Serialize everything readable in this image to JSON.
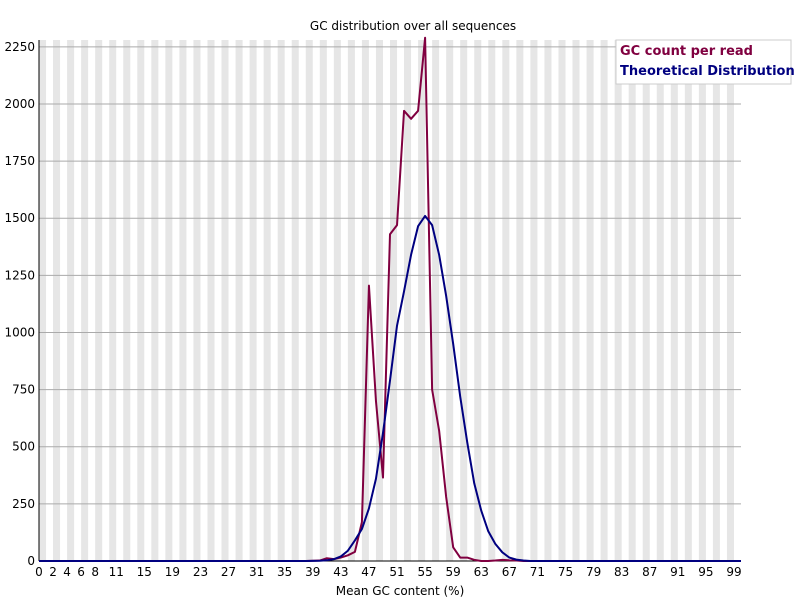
{
  "chart_data": {
    "type": "line",
    "title": "GC distribution over all sequences",
    "xlabel": "Mean GC content (%)",
    "ylabel": "",
    "xlim": [
      0,
      100
    ],
    "ylim": [
      0,
      2280
    ],
    "x_tick_labels": [
      "0",
      "2",
      "4",
      "6",
      "8",
      "11",
      "15",
      "19",
      "23",
      "27",
      "31",
      "35",
      "39",
      "43",
      "47",
      "51",
      "55",
      "59",
      "63",
      "67",
      "71",
      "75",
      "79",
      "83",
      "87",
      "91",
      "95",
      "99"
    ],
    "y_tick_labels": [
      "0",
      "250",
      "500",
      "750",
      "1000",
      "1250",
      "1500",
      "1750",
      "2000",
      "2250"
    ],
    "grid": true,
    "legend_position": "top-right",
    "series": [
      {
        "name": "GC count per read",
        "color": "#800040",
        "points": [
          [
            0,
            0
          ],
          [
            2,
            0
          ],
          [
            4,
            0
          ],
          [
            6,
            0
          ],
          [
            8,
            0
          ],
          [
            10,
            0
          ],
          [
            12,
            0
          ],
          [
            14,
            0
          ],
          [
            16,
            0
          ],
          [
            18,
            0
          ],
          [
            20,
            0
          ],
          [
            22,
            0
          ],
          [
            24,
            0
          ],
          [
            26,
            0
          ],
          [
            28,
            0
          ],
          [
            30,
            0
          ],
          [
            32,
            0
          ],
          [
            34,
            0
          ],
          [
            36,
            0
          ],
          [
            38,
            0
          ],
          [
            40,
            2
          ],
          [
            41,
            12
          ],
          [
            42,
            8
          ],
          [
            43,
            15
          ],
          [
            44,
            25
          ],
          [
            45,
            40
          ],
          [
            46,
            170
          ],
          [
            47,
            1205
          ],
          [
            48,
            700
          ],
          [
            49,
            365
          ],
          [
            50,
            1430
          ],
          [
            51,
            1470
          ],
          [
            52,
            1970
          ],
          [
            53,
            1935
          ],
          [
            54,
            1970
          ],
          [
            55,
            2290
          ],
          [
            56,
            750
          ],
          [
            57,
            570
          ],
          [
            58,
            280
          ],
          [
            59,
            60
          ],
          [
            60,
            15
          ],
          [
            61,
            15
          ],
          [
            62,
            5
          ],
          [
            63,
            0
          ],
          [
            64,
            0
          ],
          [
            65,
            2
          ],
          [
            66,
            5
          ],
          [
            67,
            3
          ],
          [
            68,
            2
          ],
          [
            69,
            0
          ],
          [
            70,
            0
          ],
          [
            72,
            0
          ],
          [
            74,
            0
          ],
          [
            76,
            0
          ],
          [
            78,
            0
          ],
          [
            80,
            0
          ],
          [
            82,
            0
          ],
          [
            84,
            0
          ],
          [
            86,
            0
          ],
          [
            88,
            0
          ],
          [
            90,
            0
          ],
          [
            92,
            0
          ],
          [
            94,
            0
          ],
          [
            96,
            0
          ],
          [
            98,
            0
          ],
          [
            100,
            0
          ]
        ]
      },
      {
        "name": "Theoretical Distribution",
        "color": "#000080",
        "points": [
          [
            0,
            0
          ],
          [
            2,
            0
          ],
          [
            4,
            0
          ],
          [
            6,
            0
          ],
          [
            8,
            0
          ],
          [
            10,
            0
          ],
          [
            12,
            0
          ],
          [
            14,
            0
          ],
          [
            16,
            0
          ],
          [
            18,
            0
          ],
          [
            20,
            0
          ],
          [
            22,
            0
          ],
          [
            24,
            0
          ],
          [
            26,
            0
          ],
          [
            28,
            0
          ],
          [
            30,
            0
          ],
          [
            32,
            0
          ],
          [
            34,
            0
          ],
          [
            36,
            0
          ],
          [
            38,
            0
          ],
          [
            40,
            1
          ],
          [
            41,
            3
          ],
          [
            42,
            8
          ],
          [
            43,
            20
          ],
          [
            44,
            45
          ],
          [
            45,
            90
          ],
          [
            46,
            140
          ],
          [
            47,
            230
          ],
          [
            48,
            360
          ],
          [
            49,
            560
          ],
          [
            50,
            790
          ],
          [
            51,
            1030
          ],
          [
            52,
            1180
          ],
          [
            53,
            1340
          ],
          [
            54,
            1465
          ],
          [
            55,
            1510
          ],
          [
            56,
            1470
          ],
          [
            57,
            1340
          ],
          [
            58,
            1160
          ],
          [
            59,
            950
          ],
          [
            60,
            720
          ],
          [
            61,
            520
          ],
          [
            62,
            340
          ],
          [
            63,
            220
          ],
          [
            64,
            130
          ],
          [
            65,
            75
          ],
          [
            66,
            38
          ],
          [
            67,
            15
          ],
          [
            68,
            6
          ],
          [
            69,
            2
          ],
          [
            70,
            0
          ],
          [
            72,
            0
          ],
          [
            74,
            0
          ],
          [
            76,
            0
          ],
          [
            78,
            0
          ],
          [
            80,
            0
          ],
          [
            82,
            0
          ],
          [
            84,
            0
          ],
          [
            86,
            0
          ],
          [
            88,
            0
          ],
          [
            90,
            0
          ],
          [
            92,
            0
          ],
          [
            94,
            0
          ],
          [
            96,
            0
          ],
          [
            98,
            0
          ],
          [
            100,
            0
          ]
        ]
      }
    ]
  }
}
